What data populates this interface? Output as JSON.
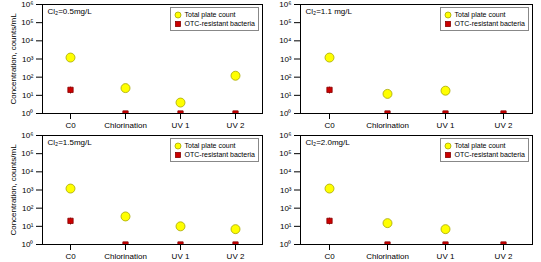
{
  "chart_data": [
    {
      "type": "scatter",
      "title": "Cl₂=0.5mg/L",
      "categories": [
        "C0",
        "Chlorination",
        "UV 1",
        "UV 2"
      ],
      "ylabel": "Concentration, counts/mL",
      "log": "y",
      "ylim": [
        1,
        1000000
      ],
      "yticks": [
        {
          "value": 1,
          "label": "10⁰"
        },
        {
          "value": 10,
          "label": "10¹"
        },
        {
          "value": 100,
          "label": "10²"
        },
        {
          "value": 1000,
          "label": "10³"
        },
        {
          "value": 10000,
          "label": "10⁴"
        },
        {
          "value": 100000,
          "label": "10⁵"
        },
        {
          "value": 1000000,
          "label": "10⁶"
        }
      ],
      "grid": false,
      "legend": "upper right",
      "series": [
        {
          "name": "Total plate count",
          "color": "#ffff00",
          "marker": "circle",
          "values": [
            1200,
            25,
            4,
            120
          ],
          "yerr_lo": [
            0,
            8,
            1.5,
            0
          ],
          "yerr_hi": [
            0,
            8,
            1.5,
            0
          ]
        },
        {
          "name": "OTC-resistant bacteria",
          "color": "#cc0000",
          "marker": "square",
          "values": [
            20,
            1,
            1,
            1
          ],
          "yerr_lo": [
            8,
            0,
            0,
            0
          ],
          "yerr_hi": [
            8,
            0,
            0,
            0
          ]
        }
      ]
    },
    {
      "type": "scatter",
      "title": "Cl₂=1.1 mg/L",
      "categories": [
        "C0",
        "Chlorination",
        "UV 1",
        "UV 2"
      ],
      "log": "y",
      "ylim": [
        1,
        1000000
      ],
      "yticks": [
        {
          "value": 1,
          "label": "10⁰"
        },
        {
          "value": 10,
          "label": "10¹"
        },
        {
          "value": 100,
          "label": "10²"
        },
        {
          "value": 1000,
          "label": "10³"
        },
        {
          "value": 10000,
          "label": "10⁴"
        },
        {
          "value": 100000,
          "label": "10⁵"
        },
        {
          "value": 1000000,
          "label": "10⁶"
        }
      ],
      "grid": false,
      "legend": "upper right",
      "series": [
        {
          "name": "Total plate count",
          "color": "#ffff00",
          "marker": "circle",
          "values": [
            1200,
            12,
            18,
            null
          ],
          "yerr_lo": [
            0,
            0,
            5,
            0
          ],
          "yerr_hi": [
            0,
            0,
            5,
            0
          ]
        },
        {
          "name": "OTC-resistant bacteria",
          "color": "#cc0000",
          "marker": "square",
          "values": [
            20,
            1,
            1,
            1
          ],
          "yerr_lo": [
            8,
            0,
            0,
            0
          ],
          "yerr_hi": [
            8,
            0,
            0,
            0
          ]
        }
      ]
    },
    {
      "type": "scatter",
      "title": "Cl₂=1.5mg/L",
      "categories": [
        "C0",
        "Chlorination",
        "UV 1",
        "UV 2"
      ],
      "ylabel": "Concentration, counts/mL",
      "log": "y",
      "ylim": [
        1,
        1000000
      ],
      "yticks": [
        {
          "value": 1,
          "label": "10⁰"
        },
        {
          "value": 10,
          "label": "10¹"
        },
        {
          "value": 100,
          "label": "10²"
        },
        {
          "value": 1000,
          "label": "10³"
        },
        {
          "value": 10000,
          "label": "10⁴"
        },
        {
          "value": 100000,
          "label": "10⁵"
        },
        {
          "value": 1000000,
          "label": "10⁶"
        }
      ],
      "grid": false,
      "legend": "upper right",
      "series": [
        {
          "name": "Total plate count",
          "color": "#ffff00",
          "marker": "circle",
          "values": [
            1200,
            35,
            10,
            7
          ],
          "yerr_lo": [
            0,
            15,
            3,
            2
          ],
          "yerr_hi": [
            0,
            15,
            3,
            2
          ]
        },
        {
          "name": "OTC-resistant bacteria",
          "color": "#cc0000",
          "marker": "square",
          "values": [
            20,
            1,
            1,
            1
          ],
          "yerr_lo": [
            8,
            0,
            0,
            0
          ],
          "yerr_hi": [
            8,
            0,
            0,
            0
          ]
        }
      ]
    },
    {
      "type": "scatter",
      "title": "Cl₂=2.0mg/L",
      "categories": [
        "C0",
        "Chlorination",
        "UV 1",
        "UV 2"
      ],
      "log": "y",
      "ylim": [
        1,
        1000000
      ],
      "yticks": [
        {
          "value": 1,
          "label": "10⁰"
        },
        {
          "value": 10,
          "label": "10¹"
        },
        {
          "value": 100,
          "label": "10²"
        },
        {
          "value": 1000,
          "label": "10³"
        },
        {
          "value": 10000,
          "label": "10⁴"
        },
        {
          "value": 100000,
          "label": "10⁵"
        },
        {
          "value": 1000000,
          "label": "10⁶"
        }
      ],
      "grid": false,
      "legend": "upper right",
      "series": [
        {
          "name": "Total plate count",
          "color": "#ffff00",
          "marker": "circle",
          "values": [
            1200,
            15,
            7,
            null
          ],
          "yerr_lo": [
            0,
            4,
            2,
            0
          ],
          "yerr_hi": [
            0,
            4,
            2,
            0
          ]
        },
        {
          "name": "OTC-resistant bacteria",
          "color": "#cc0000",
          "marker": "square",
          "values": [
            20,
            1,
            1,
            1
          ],
          "yerr_lo": [
            8,
            0,
            0,
            0
          ],
          "yerr_hi": [
            8,
            0,
            0,
            0
          ]
        }
      ]
    }
  ]
}
